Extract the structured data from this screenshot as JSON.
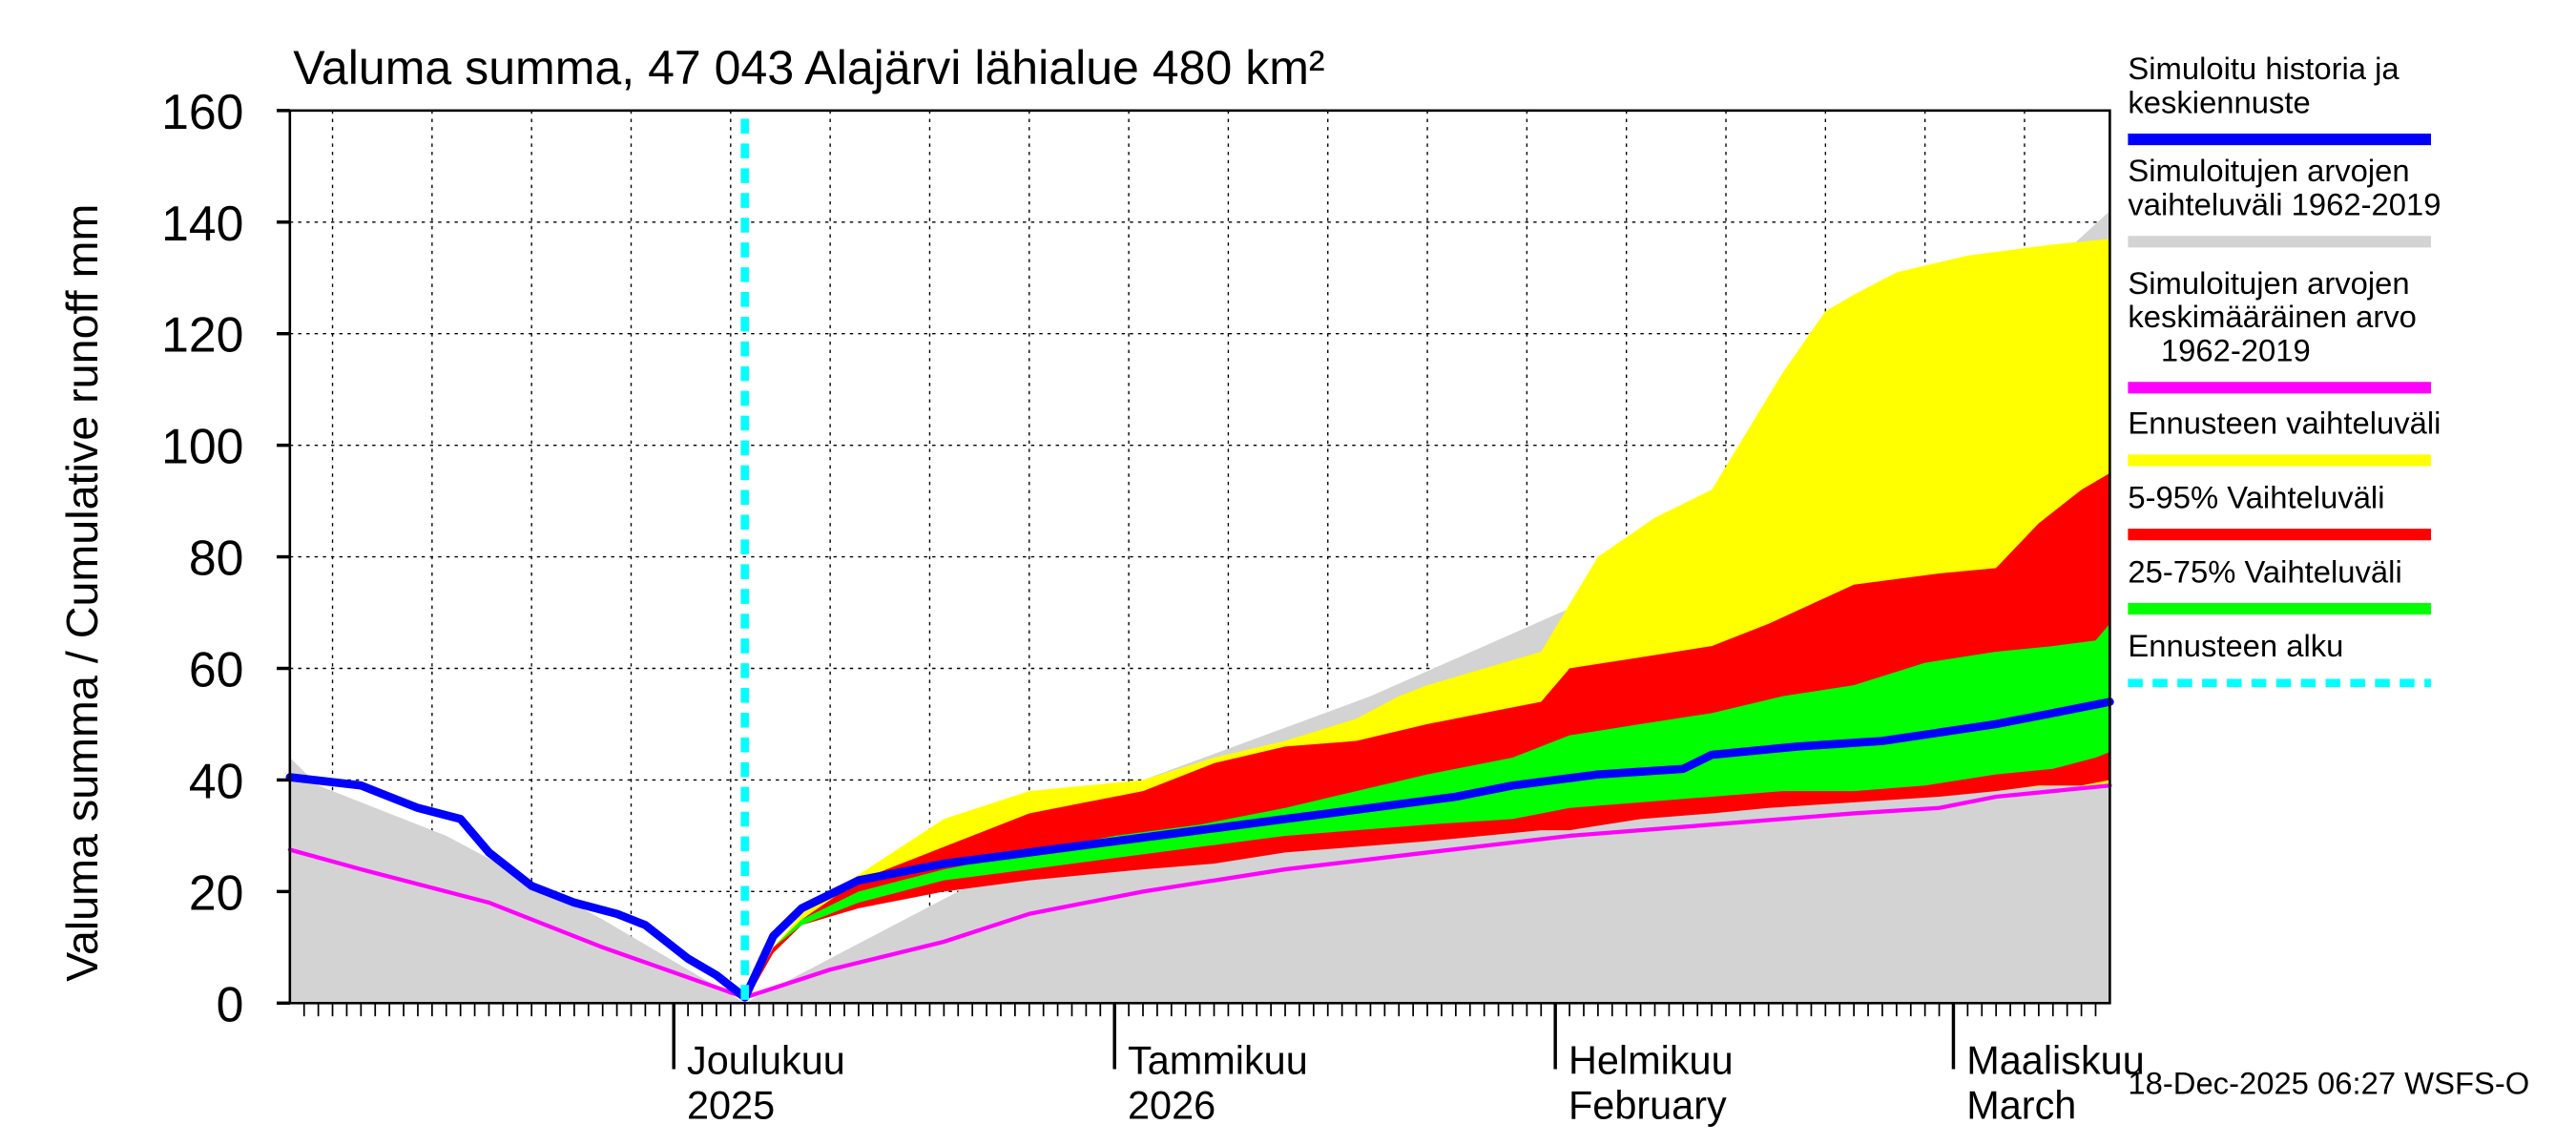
{
  "chart_data": {
    "type": "area",
    "title": "Valuma summa, 47 043 Alajärvi lähialue 480 km²",
    "ylabel": "Valuma summa / Cumulative runoff    mm",
    "ylim": [
      0,
      160
    ],
    "yticks": [
      0,
      20,
      40,
      60,
      80,
      100,
      120,
      140,
      160
    ],
    "x_range_days": [
      0,
      128
    ],
    "x_note": "day 0 = 4 Nov 2025, day 128 = 12 Mar 2026 (approx.)",
    "forecast_start_day": 32,
    "months": [
      {
        "day": 27,
        "line1": "Joulukuu",
        "line2": "2025"
      },
      {
        "day": 58,
        "line1": "Tammikuu",
        "line2": "2026"
      },
      {
        "day": 89,
        "line1": "Helmikuu",
        "line2": "February"
      },
      {
        "day": 117,
        "line1": "Maaliskuu",
        "line2": "March"
      }
    ],
    "series": {
      "historical_range": {
        "name": "Simuloitujen arvojen vaihteluväli 1962-2019",
        "color": "#d3d3d3",
        "days": [
          0,
          2,
          11,
          22,
          32,
          47,
          60,
          76,
          92,
          106,
          111,
          125,
          128
        ],
        "upper": [
          44,
          39,
          30,
          15,
          0,
          20,
          40,
          55,
          73,
          91,
          106,
          135,
          142
        ],
        "lower": [
          0,
          0,
          0,
          0,
          0,
          0,
          0,
          0,
          0,
          0,
          0,
          0,
          0
        ]
      },
      "forecast_range": {
        "name": "Ennusteen vaihteluväli",
        "color": "#ffff00",
        "days": [
          32,
          34,
          36,
          40,
          46,
          52,
          60,
          65,
          70,
          75,
          78,
          80,
          88,
          92,
          96,
          100,
          105,
          108,
          110,
          113,
          118,
          124,
          128
        ],
        "upper": [
          0,
          10,
          16,
          23,
          33,
          38,
          40,
          44,
          47,
          51,
          55,
          57,
          63,
          80,
          87,
          92,
          113,
          124,
          127,
          131,
          134,
          136,
          137
        ],
        "lower": [
          0,
          9,
          14,
          18,
          22,
          25,
          27,
          28,
          29,
          30,
          31,
          32,
          33,
          34,
          35,
          36,
          37,
          37,
          38,
          38,
          38,
          39,
          39
        ]
      },
      "p5_95": {
        "name": "5-95% Vaihteluväli",
        "color": "#ff0000",
        "days": [
          32,
          34,
          36,
          40,
          46,
          52,
          60,
          65,
          70,
          75,
          80,
          88,
          90,
          95,
          100,
          104,
          110,
          116,
          120,
          123,
          126,
          128
        ],
        "upper": [
          0,
          10,
          15,
          22,
          28,
          34,
          38,
          43,
          46,
          47,
          50,
          54,
          60,
          62,
          64,
          68,
          75,
          77,
          78,
          86,
          92,
          95
        ],
        "lower": [
          0,
          9,
          14,
          17,
          20,
          22,
          24,
          25,
          27,
          28,
          29,
          31,
          31,
          33,
          34,
          35,
          36,
          37,
          38,
          39,
          39,
          40
        ]
      },
      "p25_75": {
        "name": "25-75% Vaihteluväli",
        "color": "#00ff00",
        "days": [
          32,
          34,
          36,
          40,
          46,
          52,
          58,
          64,
          70,
          75,
          80,
          86,
          90,
          95,
          100,
          105,
          110,
          115,
          120,
          124,
          127,
          128
        ],
        "upper": [
          0,
          10,
          15,
          20,
          24,
          27,
          30,
          32,
          35,
          38,
          41,
          44,
          48,
          50,
          52,
          55,
          57,
          61,
          63,
          64,
          65,
          68
        ],
        "lower": [
          0,
          10,
          14,
          18,
          22,
          24,
          26,
          28,
          30,
          31,
          32,
          33,
          35,
          36,
          37,
          38,
          38,
          39,
          41,
          42,
          44,
          45
        ]
      },
      "median": {
        "name": "Simuloitu historia ja keskiennuste",
        "color": "#0000ff",
        "days": [
          0,
          5,
          7,
          9,
          12,
          14,
          17,
          20,
          23,
          25,
          28,
          30,
          32,
          34,
          36,
          40,
          46,
          52,
          58,
          64,
          70,
          76,
          82,
          86,
          92,
          98,
          100,
          106,
          112,
          116,
          120,
          124,
          128
        ],
        "values": [
          40.5,
          39,
          37,
          35,
          33,
          27,
          21,
          18,
          16,
          14,
          8,
          5,
          1,
          12,
          17,
          22,
          25,
          27,
          29,
          31,
          33,
          35,
          37,
          39,
          41,
          42,
          44.5,
          46,
          47,
          48.5,
          50,
          52,
          54
        ]
      },
      "mean": {
        "name": "Simuloitujen arvojen keskimääräinen arvo 1962-2019",
        "color": "#ff00ff",
        "days": [
          0,
          5,
          14,
          22,
          32,
          38,
          46,
          52,
          60,
          70,
          80,
          90,
          100,
          110,
          116,
          120,
          128
        ],
        "values": [
          27.5,
          24,
          18,
          10,
          1,
          6,
          11,
          16,
          20,
          24,
          27,
          30,
          32,
          34,
          35,
          37,
          39
        ]
      }
    },
    "legend": [
      {
        "label1": "Simuloitu historia ja",
        "label2": "keskiennuste",
        "label3": "",
        "color": "#0000ff",
        "style": "solid"
      },
      {
        "label1": "Simuloitujen arvojen",
        "label2": "vaihteluväli 1962-2019",
        "label3": "",
        "color": "#d3d3d3",
        "style": "solid"
      },
      {
        "label1": "Simuloitujen arvojen",
        "label2": "keskimääräinen arvo",
        "label3": "1962-2019",
        "color": "#ff00ff",
        "style": "solid"
      },
      {
        "label1": "Ennusteen vaihteluväli",
        "label2": "",
        "label3": "",
        "color": "#ffff00",
        "style": "solid"
      },
      {
        "label1": "5-95% Vaihteluväli",
        "label2": "",
        "label3": "",
        "color": "#ff0000",
        "style": "solid"
      },
      {
        "label1": "25-75% Vaihteluväli",
        "label2": "",
        "label3": "",
        "color": "#00ff00",
        "style": "solid"
      },
      {
        "label1": "Ennusteen alku",
        "label2": "",
        "label3": "",
        "color": "#00ffff",
        "style": "dashed"
      }
    ],
    "footer": "18-Dec-2025 06:27 WSFS-O"
  }
}
